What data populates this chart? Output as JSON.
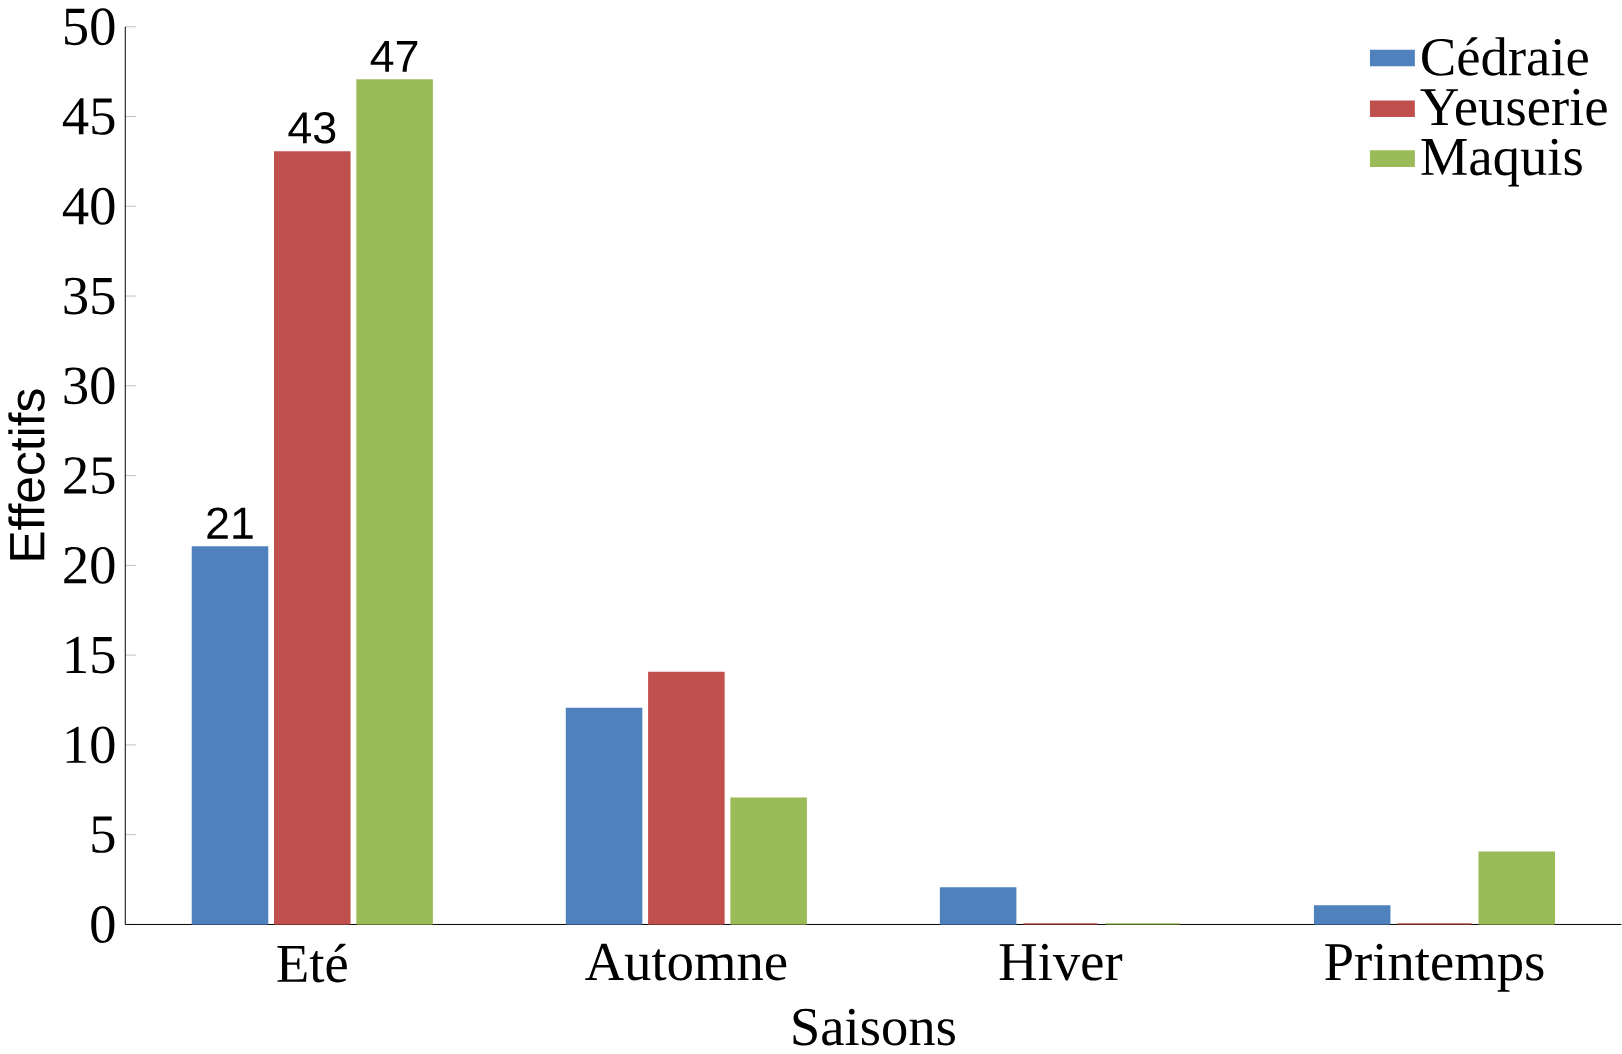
{
  "chart_data": {
    "type": "bar",
    "xlabel": "Saisons",
    "ylabel": "Effectifs",
    "categories": [
      "Eté",
      "Automne",
      "Hiver",
      "Printemps"
    ],
    "series": [
      {
        "name": "Cédraie",
        "color": "#4f81bd",
        "values": [
          21,
          12,
          2,
          1
        ],
        "value_labels": [
          "21",
          null,
          null,
          null
        ]
      },
      {
        "name": "Yeuserie",
        "color": "#c0504d",
        "values": [
          43,
          14,
          0,
          0
        ],
        "value_labels": [
          "43",
          null,
          null,
          null
        ]
      },
      {
        "name": "Maquis",
        "color": "#9bbb59",
        "values": [
          47,
          7,
          0,
          4
        ],
        "value_labels": [
          "47",
          null,
          null,
          null
        ]
      }
    ],
    "ylim": [
      0,
      50
    ],
    "yticks": [
      0,
      5,
      10,
      15,
      20,
      25,
      30,
      35,
      40,
      45,
      50
    ],
    "legend": "top right",
    "grid": false
  }
}
